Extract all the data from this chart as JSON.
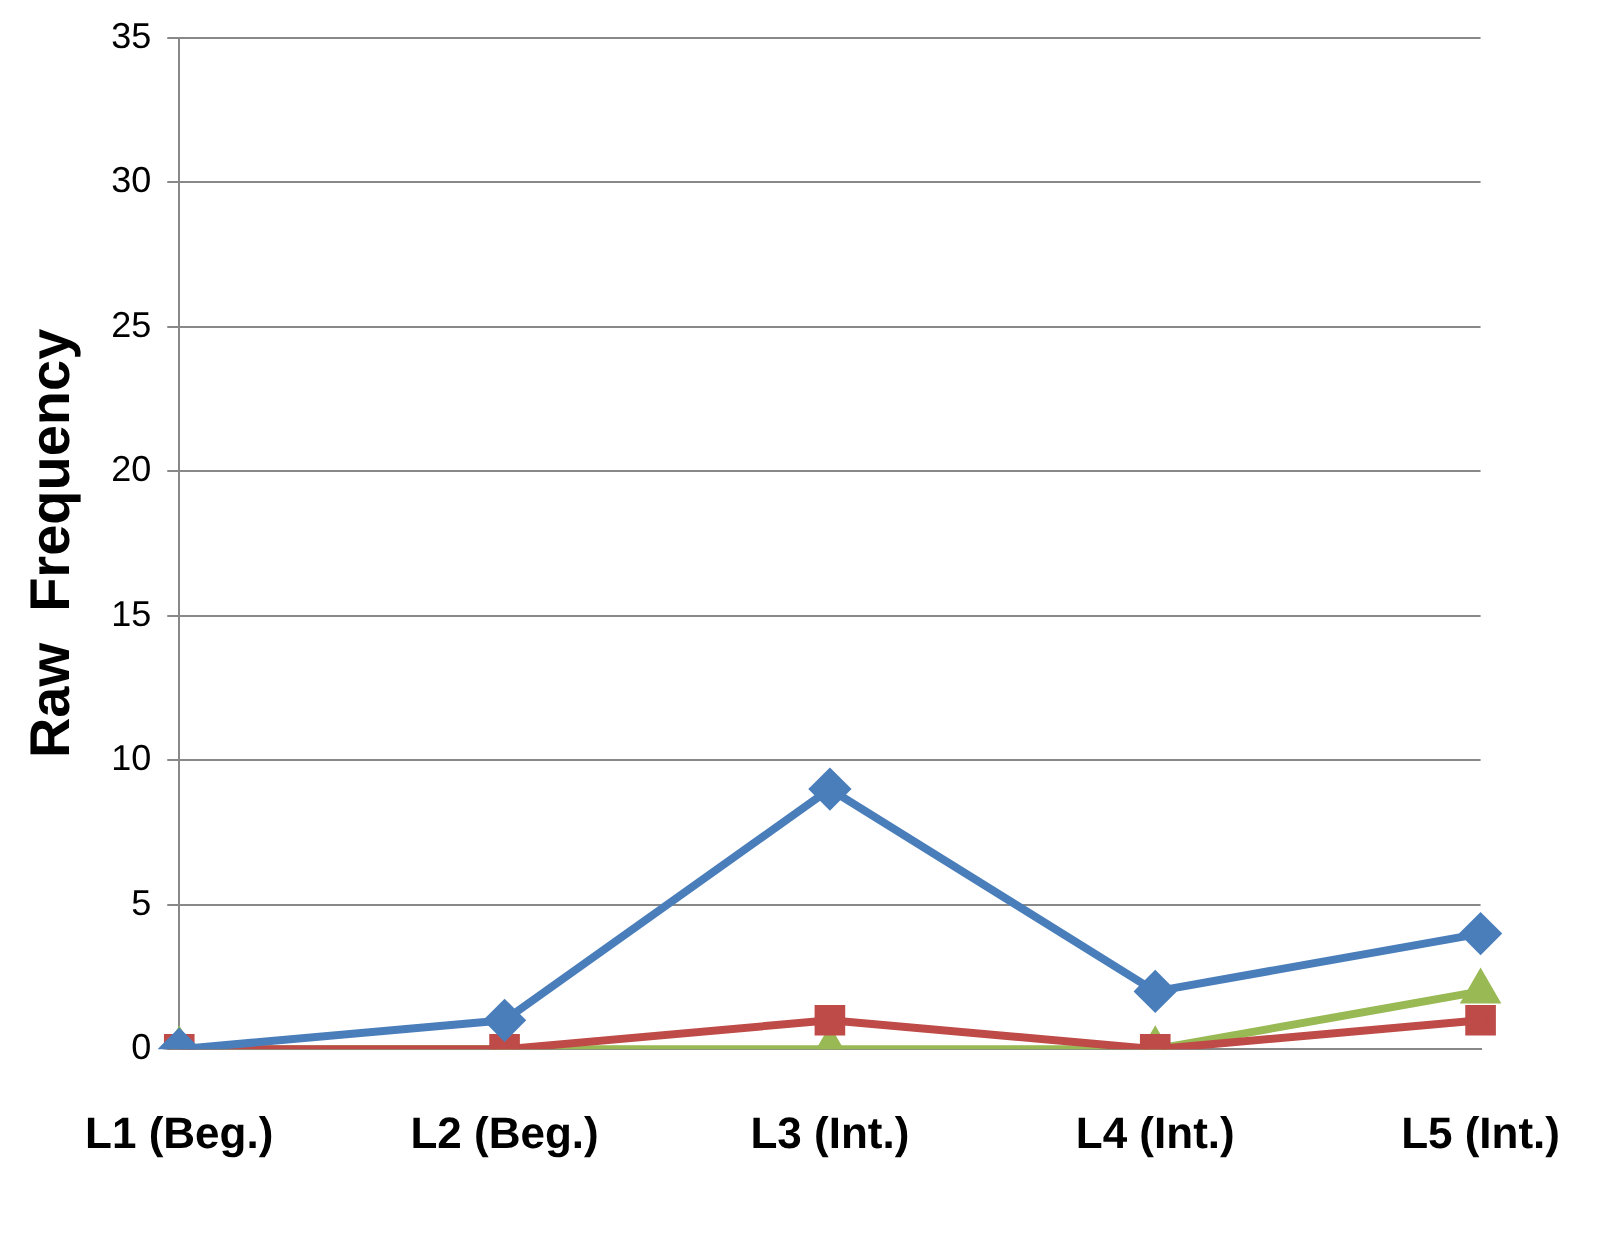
{
  "chart_data": {
    "type": "line",
    "ylabel": "Raw  Frequency",
    "categories": [
      "L1 (Beg.)",
      "L2 (Beg.)",
      "L3 (Int.)",
      "L4 (Int.)",
      "L5 (Int.)"
    ],
    "series": [
      {
        "color": "#4a7ebb",
        "marker": "diamond",
        "values": [
          0,
          1,
          9,
          2,
          4
        ]
      },
      {
        "color": "#be4b48",
        "marker": "square",
        "values": [
          0,
          0,
          1,
          0,
          1
        ]
      },
      {
        "color": "#98b954",
        "marker": "triangle",
        "values": [
          0,
          0,
          0,
          0,
          2
        ]
      }
    ],
    "ylim": [
      0,
      35
    ],
    "yticks": [
      0,
      5,
      10,
      15,
      20,
      25,
      30,
      35
    ],
    "grid": "y"
  }
}
